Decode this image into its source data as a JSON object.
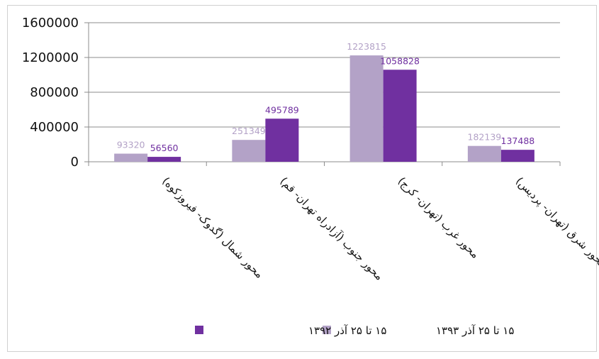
{
  "chart_data": {
    "type": "bar",
    "categories": [
      "محور شمال (گدوک- فیروزکوه)",
      "محور جنوب (آزادراه تهران- قم)",
      "محور غرب (تهران- کرج)",
      "محور شرق (تهران- پردیس)"
    ],
    "series": [
      {
        "name": "۱۵ تا ۲۵ آذر ۱۳۹۳",
        "values": [
          93320,
          251349,
          1223815,
          182139
        ],
        "color": "#b3a2c7",
        "label_color": "#b3a2c7"
      },
      {
        "name": "۱۵ تا ۲۵ آذر ۱۳۹۲",
        "values": [
          56560,
          495789,
          1058828,
          137488
        ],
        "color": "#7030a0",
        "label_color": "#7030a0"
      }
    ],
    "y_ticks": [
      0,
      400000,
      800000,
      1200000,
      1600000
    ],
    "ylim": [
      0,
      1600000
    ],
    "grid": true,
    "legend_position": "bottom",
    "title": "",
    "xlabel": "",
    "ylabel": ""
  }
}
